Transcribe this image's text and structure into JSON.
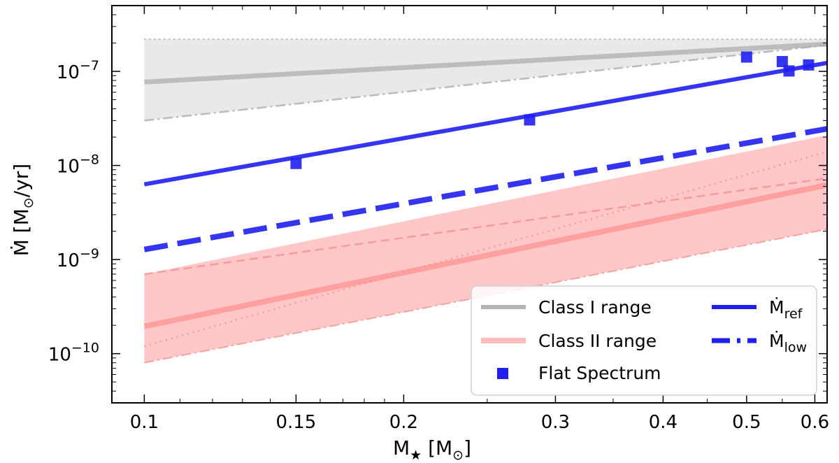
{
  "chart_data": {
    "type": "line",
    "xscale": "log",
    "yscale": "log",
    "xlim": [
      0.0917,
      0.62
    ],
    "ylim": [
      3e-11,
      5e-07
    ],
    "xlabel": {
      "main": "M",
      "sub": "★",
      "unit": " [M",
      "unit_sub": "⊙",
      "close": "]"
    },
    "ylabel": {
      "main": "Ṁ [M",
      "unit_sub": "⊙",
      "close": "/yr]"
    },
    "x_ticks": [
      {
        "value": 0.1,
        "label": "0.1"
      },
      {
        "value": 0.15,
        "label": "0.15"
      },
      {
        "value": 0.2,
        "label": "0.2"
      },
      {
        "value": 0.3,
        "label": "0.3"
      },
      {
        "value": 0.4,
        "label": "0.4"
      },
      {
        "value": 0.5,
        "label": "0.5"
      },
      {
        "value": 0.6,
        "label": "0.6"
      }
    ],
    "y_ticks": [
      {
        "value": 1e-07,
        "base": "10",
        "exp": "−7"
      },
      {
        "value": 1e-08,
        "base": "10",
        "exp": "−8"
      },
      {
        "value": 1e-09,
        "base": "10",
        "exp": "−9"
      },
      {
        "value": 1e-10,
        "base": "10",
        "exp": "−10"
      }
    ],
    "bands": [
      {
        "name": "class1-band",
        "x": [
          0.1,
          0.62
        ],
        "lower": [
          3e-08,
          1.9e-07
        ],
        "upper": [
          2.2e-07,
          2.2e-07
        ],
        "color": "#d3d3d3",
        "opacity": 0.5
      },
      {
        "name": "class2-band",
        "x": [
          0.1,
          0.62
        ],
        "lower": [
          8e-11,
          2.1e-09
        ],
        "upper": [
          7e-10,
          2.1e-08
        ],
        "color": "#ff9999",
        "opacity": 0.55
      }
    ],
    "series": [
      {
        "name": "class1-upper-dotted",
        "x": [
          0.1,
          0.62
        ],
        "y": [
          2.2e-07,
          2.2e-07
        ],
        "color": "#aaaaaa",
        "width": 2,
        "dash": "2,5",
        "opacity": 0.9
      },
      {
        "name": "class1-lower-dashdot",
        "x": [
          0.1,
          0.62
        ],
        "y": [
          3e-08,
          1.9e-07
        ],
        "color": "#b5b5b5",
        "width": 2.5,
        "dash": "14,5,3,5",
        "opacity": 0.9
      },
      {
        "name": "class1-median",
        "x": [
          0.1,
          0.62
        ],
        "y": [
          7.7e-08,
          1.95e-07
        ],
        "color": "#a9a9a9",
        "width": 7,
        "dash": "",
        "opacity": 0.7
      },
      {
        "name": "class2-dashed",
        "x": [
          0.1,
          0.62
        ],
        "y": [
          7e-10,
          7.3e-09
        ],
        "color": "#f08a8a",
        "width": 2.5,
        "dash": "12,7",
        "opacity": 0.7
      },
      {
        "name": "class2-dotted",
        "x": [
          0.1,
          0.62
        ],
        "y": [
          1.2e-10,
          1.4e-08
        ],
        "color": "#f08a8a",
        "width": 2.5,
        "dash": "2,6",
        "opacity": 0.7
      },
      {
        "name": "class2-lower-dashdot",
        "x": [
          0.1,
          0.62
        ],
        "y": [
          8e-11,
          2.1e-09
        ],
        "color": "#f08a8a",
        "width": 2,
        "dash": "14,5,3,5",
        "opacity": 0.7
      },
      {
        "name": "class2-median",
        "x": [
          0.1,
          0.62
        ],
        "y": [
          1.95e-10,
          6.2e-09
        ],
        "color": "#ff8c8c",
        "width": 8,
        "dash": "",
        "opacity": 0.65
      },
      {
        "name": "mdot-ref",
        "x": [
          0.1,
          0.62
        ],
        "y": [
          6.3e-09,
          1.23e-07
        ],
        "color": "#1f1ff0",
        "width": 6,
        "dash": "",
        "opacity": 0.9
      },
      {
        "name": "mdot-low",
        "x": [
          0.1,
          0.62
        ],
        "y": [
          1.28e-09,
          2.45e-08
        ],
        "color": "#1f1ff0",
        "width": 8,
        "dash": "34,14",
        "opacity": 0.9
      }
    ],
    "scatter": {
      "name": "Flat Spectrum",
      "color": "#1f1ff0",
      "points": [
        {
          "x": 0.15,
          "y": 1.05e-08
        },
        {
          "x": 0.28,
          "y": 3.05e-08
        },
        {
          "x": 0.5,
          "y": 1.42e-07
        },
        {
          "x": 0.55,
          "y": 1.27e-07
        },
        {
          "x": 0.56,
          "y": 1.01e-07
        },
        {
          "x": 0.59,
          "y": 1.17e-07
        }
      ]
    },
    "legend": {
      "placement": "lower-right",
      "entries": [
        {
          "key": "class1",
          "label": "Class I range",
          "kind": "line",
          "color": "#b3b3b3",
          "width": 6,
          "dash": ""
        },
        {
          "key": "class2",
          "label": "Class II range",
          "kind": "line",
          "color": "#ffbcbc",
          "width": 8,
          "dash": ""
        },
        {
          "key": "flat",
          "label": "Flat Spectrum",
          "kind": "square",
          "color": "#1f1ff0"
        },
        {
          "key": "ref",
          "label": "Ṁ",
          "sub": "ref",
          "kind": "line",
          "color": "#1f1ff0",
          "width": 6,
          "dash": ""
        },
        {
          "key": "low",
          "label": "Ṁ",
          "sub": "low",
          "kind": "line",
          "color": "#1f1ff0",
          "width": 7,
          "dash": "26,10,5,10"
        }
      ]
    }
  }
}
